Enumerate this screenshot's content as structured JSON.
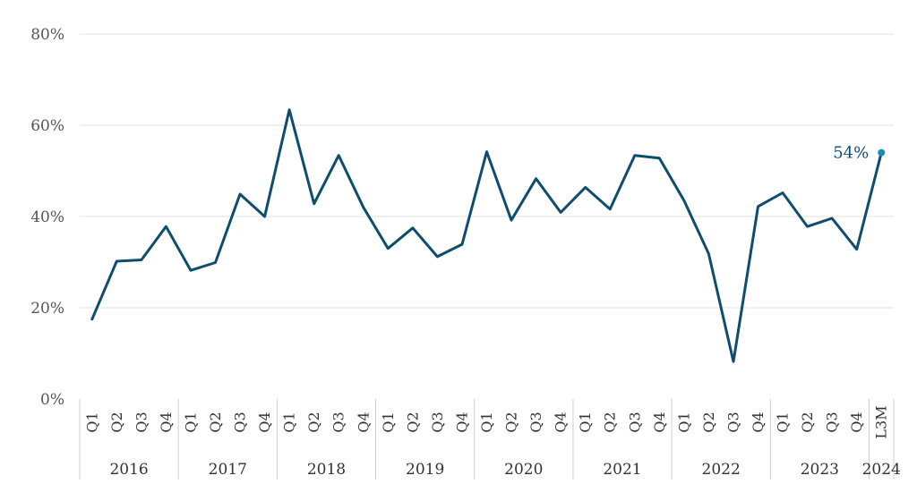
{
  "chart_data": {
    "type": "line",
    "ylim": [
      0,
      80
    ],
    "y_ticks": [
      "0%",
      "20%",
      "40%",
      "60%",
      "80%"
    ],
    "y_tick_values": [
      0,
      20,
      40,
      60,
      80
    ],
    "grid": true,
    "groups": [
      {
        "label": "2016",
        "categories": [
          "Q1",
          "Q2",
          "Q3",
          "Q4"
        ]
      },
      {
        "label": "2017",
        "categories": [
          "Q1",
          "Q2",
          "Q3",
          "Q4"
        ]
      },
      {
        "label": "2018",
        "categories": [
          "Q1",
          "Q2",
          "Q3",
          "Q4"
        ]
      },
      {
        "label": "2019",
        "categories": [
          "Q1",
          "Q2",
          "Q3",
          "Q4"
        ]
      },
      {
        "label": "2020",
        "categories": [
          "Q1",
          "Q2",
          "Q3",
          "Q4"
        ]
      },
      {
        "label": "2021",
        "categories": [
          "Q1",
          "Q2",
          "Q3",
          "Q4"
        ]
      },
      {
        "label": "2022",
        "categories": [
          "Q1",
          "Q2",
          "Q3",
          "Q4"
        ]
      },
      {
        "label": "2023",
        "categories": [
          "Q1",
          "Q2",
          "Q3",
          "Q4"
        ]
      },
      {
        "label": "2024",
        "categories": [
          "L3M"
        ]
      }
    ],
    "series": [
      {
        "values": [
          17.5,
          30.2,
          30.5,
          37.8,
          28.2,
          29.9,
          44.9,
          40.0,
          63.4,
          42.8,
          53.4,
          42.0,
          33.0,
          37.5,
          31.2,
          33.9,
          54.2,
          39.2,
          48.3,
          40.9,
          46.4,
          41.6,
          53.4,
          52.8,
          43.5,
          31.8,
          8.2,
          42.2,
          45.2,
          37.8,
          39.6,
          32.8,
          54.0
        ],
        "color": "#0e4d6e"
      }
    ],
    "annotations": [
      {
        "index": 32,
        "text": "54%",
        "marker_color": "#1a8bb8"
      }
    ]
  }
}
